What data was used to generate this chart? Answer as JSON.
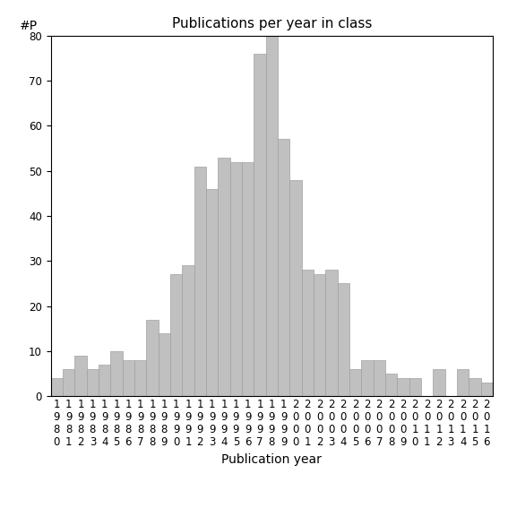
{
  "all_years": [
    "1980",
    "1981",
    "1982",
    "1983",
    "1984",
    "1985",
    "1986",
    "1987",
    "1988",
    "1989",
    "1990",
    "1991",
    "1992",
    "1993",
    "1994",
    "1995",
    "1996",
    "1997",
    "1998",
    "1999",
    "2000",
    "2001",
    "2002",
    "2003",
    "2004",
    "2005",
    "2006",
    "2007",
    "2008",
    "2009",
    "2010",
    "2011",
    "2012",
    "2013",
    "2014",
    "2015",
    "2016"
  ],
  "all_values": [
    4,
    6,
    9,
    6,
    7,
    10,
    8,
    8,
    17,
    14,
    27,
    29,
    51,
    46,
    53,
    52,
    52,
    76,
    80,
    57,
    48,
    28,
    27,
    28,
    25,
    6,
    8,
    8,
    5,
    4,
    4,
    0,
    6,
    0,
    6,
    4,
    3
  ],
  "bar_color": "#c0c0c0",
  "bar_edgecolor": "#a0a0a0",
  "title": "Publications per year in class",
  "xlabel": "Publication year",
  "ylabel": "#P",
  "ylim": [
    0,
    80
  ],
  "yticks": [
    0,
    10,
    20,
    30,
    40,
    50,
    60,
    70,
    80
  ],
  "title_fontsize": 11,
  "axis_label_fontsize": 10,
  "tick_fontsize": 8.5,
  "background_color": "#ffffff"
}
